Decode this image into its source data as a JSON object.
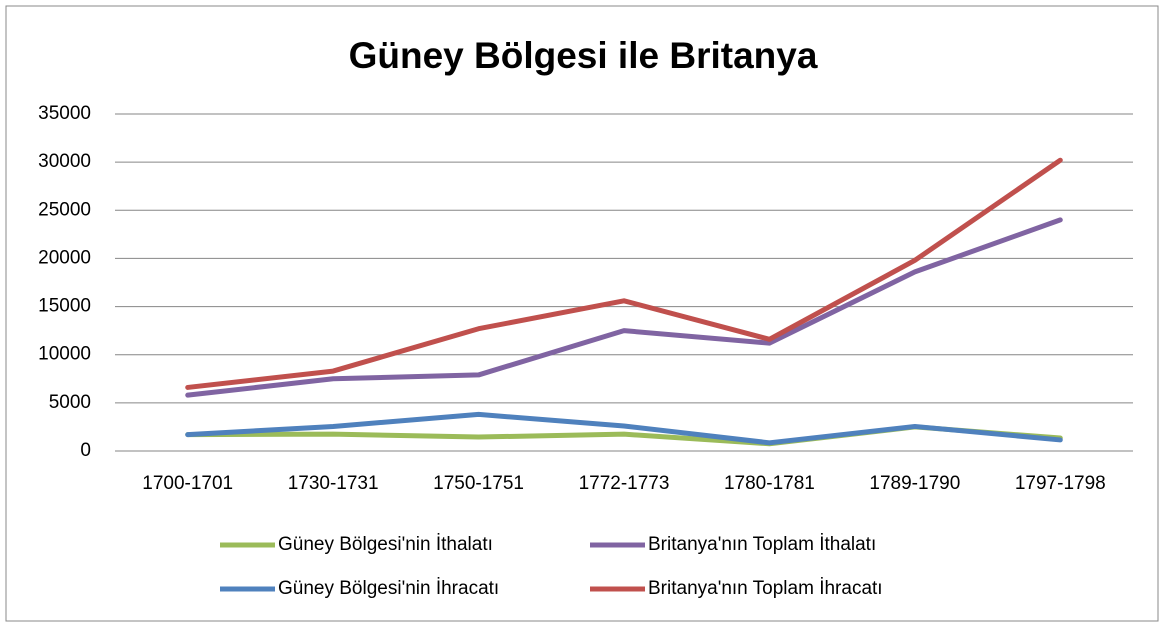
{
  "chart_data": {
    "type": "line",
    "title": "Güney Bölgesi ile Britanya",
    "categories": [
      "1700-1701",
      "1730-1731",
      "1750-1751",
      "1772-1773",
      "1780-1781",
      "1789-1790",
      "1797-1798"
    ],
    "series": [
      {
        "name": "Güney Bölgesi'nin İthalatı",
        "color": "#9bbb59",
        "values": [
          1700,
          1750,
          1450,
          1750,
          750,
          2500,
          1350
        ]
      },
      {
        "name": "Britanya'nın Toplam İthalatı",
        "color": "#8064a2",
        "values": [
          5800,
          7500,
          7900,
          12500,
          11200,
          18600,
          24000
        ]
      },
      {
        "name": "Güney Bölgesi'nin İhracatı",
        "color": "#4f81bd",
        "values": [
          1700,
          2550,
          3800,
          2600,
          850,
          2550,
          1150
        ]
      },
      {
        "name": "Britanya'nın Toplam İhracatı",
        "color": "#c0504d",
        "values": [
          6600,
          8300,
          12700,
          15600,
          11600,
          19800,
          30200
        ]
      }
    ],
    "ylim": [
      0,
      35000
    ],
    "yticks": [
      0,
      5000,
      10000,
      15000,
      20000,
      25000,
      30000,
      35000
    ],
    "grid": true,
    "legend": "bottom"
  }
}
